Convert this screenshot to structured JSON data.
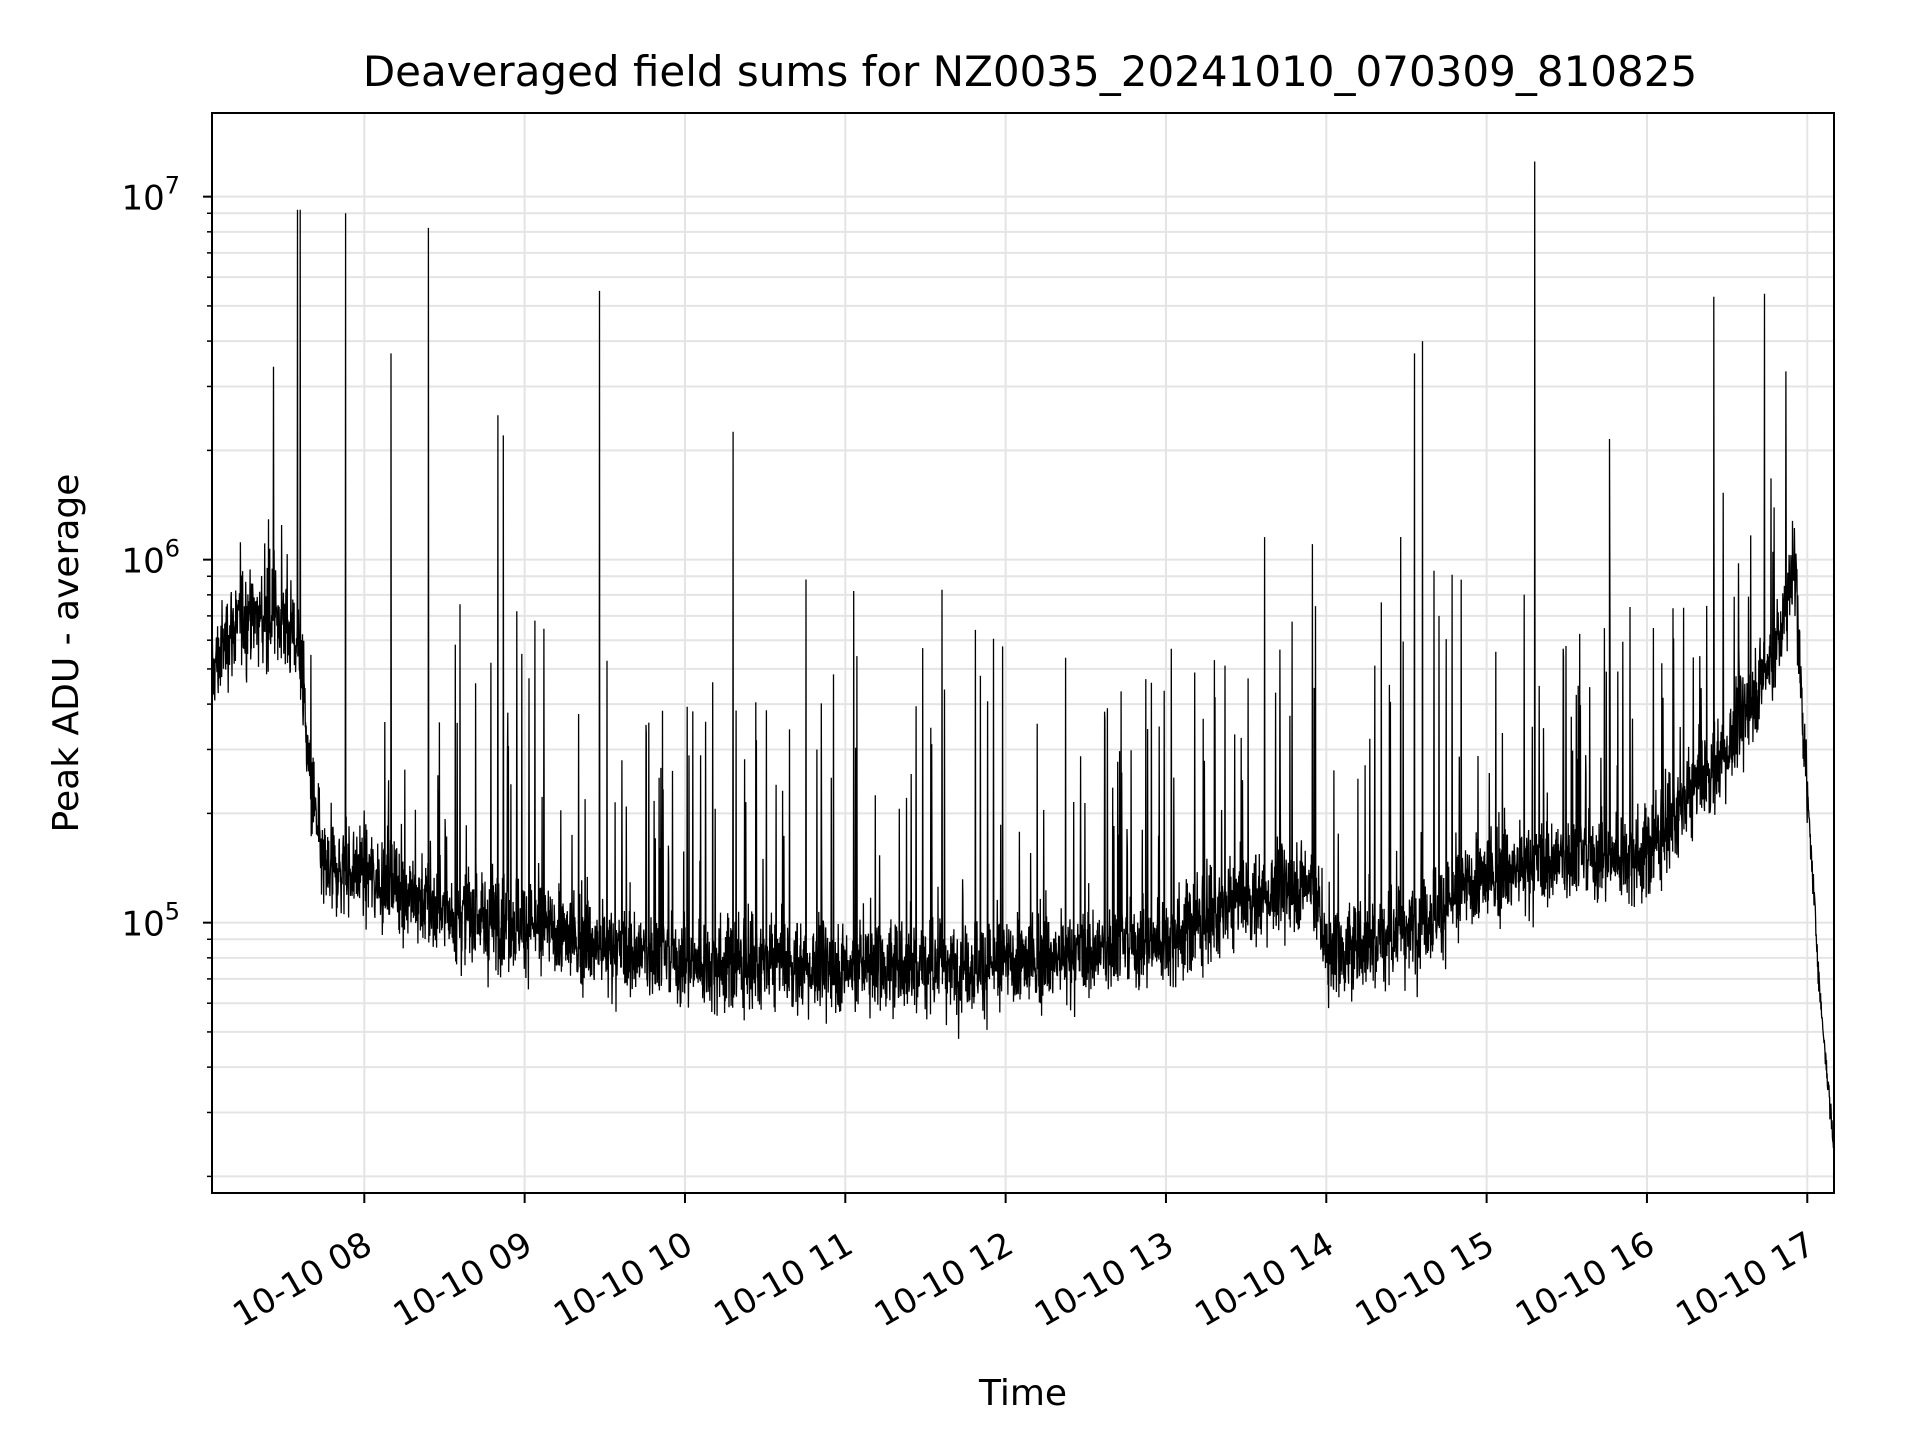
{
  "chart_data": {
    "type": "line",
    "title": "Deaveraged field sums for NZ0035_20241010_070309_810825",
    "xlabel": "Time",
    "ylabel": "Peak ADU - average",
    "x_range": [
      "2024-10-10 07:03",
      "2024-10-10 17:10"
    ],
    "ylim": [
      18000,
      17000000
    ],
    "yscale": "log",
    "grid": true,
    "line_color": "#000000",
    "x_ticks": [
      {
        "t": "2024-10-10 08:00",
        "label": "10-10 08"
      },
      {
        "t": "2024-10-10 09:00",
        "label": "10-10 09"
      },
      {
        "t": "2024-10-10 10:00",
        "label": "10-10 10"
      },
      {
        "t": "2024-10-10 11:00",
        "label": "10-10 11"
      },
      {
        "t": "2024-10-10 12:00",
        "label": "10-10 12"
      },
      {
        "t": "2024-10-10 13:00",
        "label": "10-10 13"
      },
      {
        "t": "2024-10-10 14:00",
        "label": "10-10 14"
      },
      {
        "t": "2024-10-10 15:00",
        "label": "10-10 15"
      },
      {
        "t": "2024-10-10 16:00",
        "label": "10-10 16"
      },
      {
        "t": "2024-10-10 17:00",
        "label": "10-10 17"
      }
    ],
    "y_ticks": [
      {
        "value": 100000,
        "base": "10",
        "exp": "5"
      },
      {
        "value": 1000000,
        "base": "10",
        "exp": "6"
      },
      {
        "value": 10000000,
        "base": "10",
        "exp": "7"
      }
    ],
    "baseline": [
      [
        "2024-10-10 07:03",
        480000
      ],
      [
        "2024-10-10 07:10",
        650000
      ],
      [
        "2024-10-10 07:20",
        700000
      ],
      [
        "2024-10-10 07:30",
        680000
      ],
      [
        "2024-10-10 07:36",
        560000
      ],
      [
        "2024-10-10 07:40",
        220000
      ],
      [
        "2024-10-10 07:45",
        140000
      ],
      [
        "2024-10-10 08:00",
        140000
      ],
      [
        "2024-10-10 08:30",
        105000
      ],
      [
        "2024-10-10 09:00",
        100000
      ],
      [
        "2024-10-10 09:30",
        85000
      ],
      [
        "2024-10-10 10:00",
        78000
      ],
      [
        "2024-10-10 11:00",
        75000
      ],
      [
        "2024-10-10 12:00",
        77000
      ],
      [
        "2024-10-10 12:30",
        82000
      ],
      [
        "2024-10-10 13:00",
        90000
      ],
      [
        "2024-10-10 13:30",
        115000
      ],
      [
        "2024-10-10 13:55",
        130000
      ],
      [
        "2024-10-10 14:00",
        80000
      ],
      [
        "2024-10-10 14:30",
        95000
      ],
      [
        "2024-10-10 15:00",
        135000
      ],
      [
        "2024-10-10 15:30",
        150000
      ],
      [
        "2024-10-10 16:00",
        155000
      ],
      [
        "2024-10-10 16:30",
        300000
      ],
      [
        "2024-10-10 16:50",
        600000
      ],
      [
        "2024-10-10 16:55",
        1000000
      ],
      [
        "2024-10-10 17:00",
        230000
      ],
      [
        "2024-10-10 17:05",
        60000
      ],
      [
        "2024-10-10 17:10",
        24000
      ]
    ],
    "peaks": [
      [
        "2024-10-10 07:26",
        3400000
      ],
      [
        "2024-10-10 07:35",
        9200000
      ],
      [
        "2024-10-10 07:36",
        9200000
      ],
      [
        "2024-10-10 07:53",
        9000000
      ],
      [
        "2024-10-10 08:10",
        3700000
      ],
      [
        "2024-10-10 08:24",
        8200000
      ],
      [
        "2024-10-10 08:50",
        2500000
      ],
      [
        "2024-10-10 08:52",
        2200000
      ],
      [
        "2024-10-10 09:28",
        5500000
      ],
      [
        "2024-10-10 10:18",
        2250000
      ],
      [
        "2024-10-10 14:33",
        3700000
      ],
      [
        "2024-10-10 14:36",
        4000000
      ],
      [
        "2024-10-10 15:18",
        12500000
      ],
      [
        "2024-10-10 15:46",
        2150000
      ],
      [
        "2024-10-10 16:25",
        5300000
      ],
      [
        "2024-10-10 16:44",
        5400000
      ],
      [
        "2024-10-10 16:52",
        3300000
      ]
    ],
    "spike_envelope": [
      [
        "2024-10-10 07:20",
        1500000
      ],
      [
        "2024-10-10 08:00",
        1200000
      ],
      [
        "2024-10-10 09:00",
        1200000
      ],
      [
        "2024-10-10 10:00",
        1100000
      ],
      [
        "2024-10-10 11:00",
        1150000
      ],
      [
        "2024-10-10 12:00",
        1100000
      ],
      [
        "2024-10-10 13:00",
        1400000
      ],
      [
        "2024-10-10 14:00",
        1500000
      ],
      [
        "2024-10-10 15:00",
        1700000
      ],
      [
        "2024-10-10 16:00",
        1600000
      ],
      [
        "2024-10-10 16:50",
        2000000
      ]
    ]
  }
}
